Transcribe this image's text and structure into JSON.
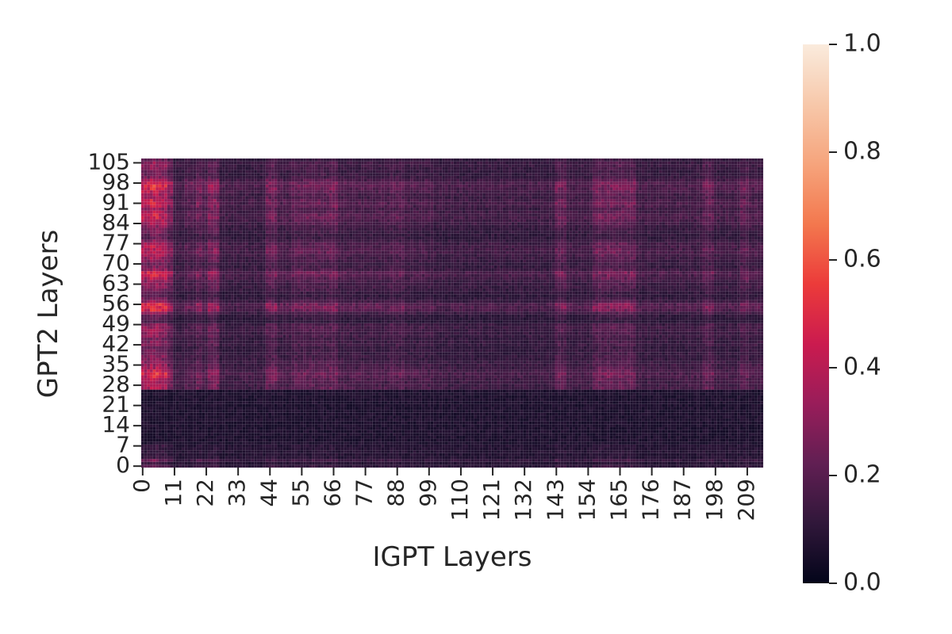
{
  "chart_data": {
    "type": "heatmap",
    "xlabel": "IGPT Layers",
    "ylabel": "GPT2 Layers",
    "x_range": [
      0,
      215
    ],
    "y_range": [
      0,
      107
    ],
    "x_tick_labels": [
      "0",
      "11",
      "22",
      "33",
      "44",
      "55",
      "66",
      "77",
      "88",
      "99",
      "110",
      "121",
      "132",
      "143",
      "154",
      "165",
      "176",
      "187",
      "198",
      "209"
    ],
    "y_tick_labels": [
      "0",
      "7",
      "14",
      "21",
      "28",
      "35",
      "42",
      "49",
      "56",
      "63",
      "70",
      "77",
      "84",
      "91",
      "98",
      "105"
    ],
    "colorbar": {
      "min": 0.0,
      "max": 1.0,
      "tick_labels": [
        "0.0",
        "0.2",
        "0.4",
        "0.6",
        "0.8",
        "1.0"
      ],
      "colormap": "rocket",
      "colors": [
        "#03051a",
        "#30173a",
        "#611f53",
        "#991d5a",
        "#cb1b4f",
        "#ec3b3a",
        "#f3784e",
        "#f6a47c",
        "#f7c8aa",
        "#faebdd"
      ]
    },
    "row_weights": [
      {
        "y": 0,
        "w": 0.25
      },
      {
        "y": 1,
        "w": 0.12
      },
      {
        "y": 2,
        "w": 0.35
      },
      {
        "y": 3,
        "w": 0.12
      },
      {
        "y": 4,
        "w": 0.1
      },
      {
        "y": 5,
        "w": 0.1
      },
      {
        "y": 6,
        "w": 0.1
      },
      {
        "y": 7,
        "w": 0.12
      },
      {
        "y": 27,
        "w": 0.6
      },
      {
        "y": 28,
        "w": 0.55
      },
      {
        "y": 29,
        "w": 0.55
      },
      {
        "y": 30,
        "w": 0.6
      },
      {
        "y": 31,
        "w": 0.7
      },
      {
        "y": 32,
        "w": 0.75
      },
      {
        "y": 33,
        "w": 0.65
      },
      {
        "y": 34,
        "w": 0.55
      },
      {
        "y": 35,
        "w": 0.5
      },
      {
        "y": 36,
        "w": 0.45
      },
      {
        "y": 37,
        "w": 0.4
      },
      {
        "y": 38,
        "w": 0.4
      },
      {
        "y": 39,
        "w": 0.35
      },
      {
        "y": 40,
        "w": 0.35
      },
      {
        "y": 41,
        "w": 0.3
      },
      {
        "y": 42,
        "w": 0.4
      },
      {
        "y": 43,
        "w": 0.4
      },
      {
        "y": 44,
        "w": 0.35
      },
      {
        "y": 45,
        "w": 0.45
      },
      {
        "y": 46,
        "w": 0.45
      },
      {
        "y": 47,
        "w": 0.5
      },
      {
        "y": 48,
        "w": 0.5
      },
      {
        "y": 49,
        "w": 0.45
      },
      {
        "y": 50,
        "w": 0.2
      },
      {
        "y": 51,
        "w": 0.25
      },
      {
        "y": 52,
        "w": 0.3
      },
      {
        "y": 53,
        "w": 0.45
      },
      {
        "y": 54,
        "w": 0.75
      },
      {
        "y": 55,
        "w": 0.85
      },
      {
        "y": 56,
        "w": 0.8
      },
      {
        "y": 57,
        "w": 0.5
      },
      {
        "y": 58,
        "w": 0.35
      },
      {
        "y": 59,
        "w": 0.25
      },
      {
        "y": 60,
        "w": 0.3
      },
      {
        "y": 61,
        "w": 0.4
      },
      {
        "y": 62,
        "w": 0.45
      },
      {
        "y": 63,
        "w": 0.45
      },
      {
        "y": 64,
        "w": 0.5
      },
      {
        "y": 65,
        "w": 0.6
      },
      {
        "y": 66,
        "w": 0.7
      },
      {
        "y": 67,
        "w": 0.75
      },
      {
        "y": 68,
        "w": 0.5
      },
      {
        "y": 69,
        "w": 0.4
      },
      {
        "y": 70,
        "w": 0.35
      },
      {
        "y": 71,
        "w": 0.45
      },
      {
        "y": 72,
        "w": 0.5
      },
      {
        "y": 73,
        "w": 0.55
      },
      {
        "y": 74,
        "w": 0.65
      },
      {
        "y": 75,
        "w": 0.65
      },
      {
        "y": 76,
        "w": 0.6
      },
      {
        "y": 77,
        "w": 0.55
      },
      {
        "y": 78,
        "w": 0.4
      },
      {
        "y": 79,
        "w": 0.3
      },
      {
        "y": 80,
        "w": 0.3
      },
      {
        "y": 81,
        "w": 0.35
      },
      {
        "y": 82,
        "w": 0.4
      },
      {
        "y": 83,
        "w": 0.45
      },
      {
        "y": 84,
        "w": 0.55
      },
      {
        "y": 85,
        "w": 0.6
      },
      {
        "y": 86,
        "w": 0.7
      },
      {
        "y": 87,
        "w": 0.65
      },
      {
        "y": 88,
        "w": 0.6
      },
      {
        "y": 89,
        "w": 0.5
      },
      {
        "y": 90,
        "w": 0.65
      },
      {
        "y": 91,
        "w": 0.7
      },
      {
        "y": 92,
        "w": 0.65
      },
      {
        "y": 93,
        "w": 0.5
      },
      {
        "y": 94,
        "w": 0.55
      },
      {
        "y": 95,
        "w": 0.65
      },
      {
        "y": 96,
        "w": 0.75
      },
      {
        "y": 97,
        "w": 0.8
      },
      {
        "y": 98,
        "w": 0.75
      },
      {
        "y": 99,
        "w": 0.6
      },
      {
        "y": 100,
        "w": 0.4
      },
      {
        "y": 101,
        "w": 0.35
      },
      {
        "y": 102,
        "w": 0.35
      },
      {
        "y": 103,
        "w": 0.4
      },
      {
        "y": 104,
        "w": 0.45
      },
      {
        "y": 105,
        "w": 0.45
      },
      {
        "y": 106,
        "w": 0.3
      }
    ],
    "column_weights": [
      {
        "x0": 0,
        "x1": 2,
        "w": 0.85
      },
      {
        "x0": 3,
        "x1": 5,
        "w": 1.0
      },
      {
        "x0": 6,
        "x1": 8,
        "w": 0.9
      },
      {
        "x0": 9,
        "x1": 10,
        "w": 0.6
      },
      {
        "x0": 11,
        "x1": 14,
        "w": 0.25
      },
      {
        "x0": 15,
        "x1": 18,
        "w": 0.35
      },
      {
        "x0": 19,
        "x1": 20,
        "w": 0.5
      },
      {
        "x0": 21,
        "x1": 22,
        "w": 0.35
      },
      {
        "x0": 23,
        "x1": 26,
        "w": 0.6
      },
      {
        "x0": 27,
        "x1": 42,
        "w": 0.22
      },
      {
        "x0": 43,
        "x1": 46,
        "w": 0.5
      },
      {
        "x0": 47,
        "x1": 51,
        "w": 0.3
      },
      {
        "x0": 52,
        "x1": 64,
        "w": 0.42
      },
      {
        "x0": 65,
        "x1": 67,
        "w": 0.5
      },
      {
        "x0": 68,
        "x1": 81,
        "w": 0.3
      },
      {
        "x0": 82,
        "x1": 85,
        "w": 0.3
      },
      {
        "x0": 86,
        "x1": 90,
        "w": 0.38
      },
      {
        "x0": 91,
        "x1": 100,
        "w": 0.28
      },
      {
        "x0": 101,
        "x1": 142,
        "w": 0.22
      },
      {
        "x0": 143,
        "x1": 146,
        "w": 0.45
      },
      {
        "x0": 147,
        "x1": 155,
        "w": 0.25
      },
      {
        "x0": 156,
        "x1": 170,
        "w": 0.48
      },
      {
        "x0": 171,
        "x1": 193,
        "w": 0.25
      },
      {
        "x0": 194,
        "x1": 197,
        "w": 0.42
      },
      {
        "x0": 198,
        "x1": 206,
        "w": 0.25
      },
      {
        "x0": 207,
        "x1": 209,
        "w": 0.42
      },
      {
        "x0": 210,
        "x1": 215,
        "w": 0.3
      }
    ]
  }
}
